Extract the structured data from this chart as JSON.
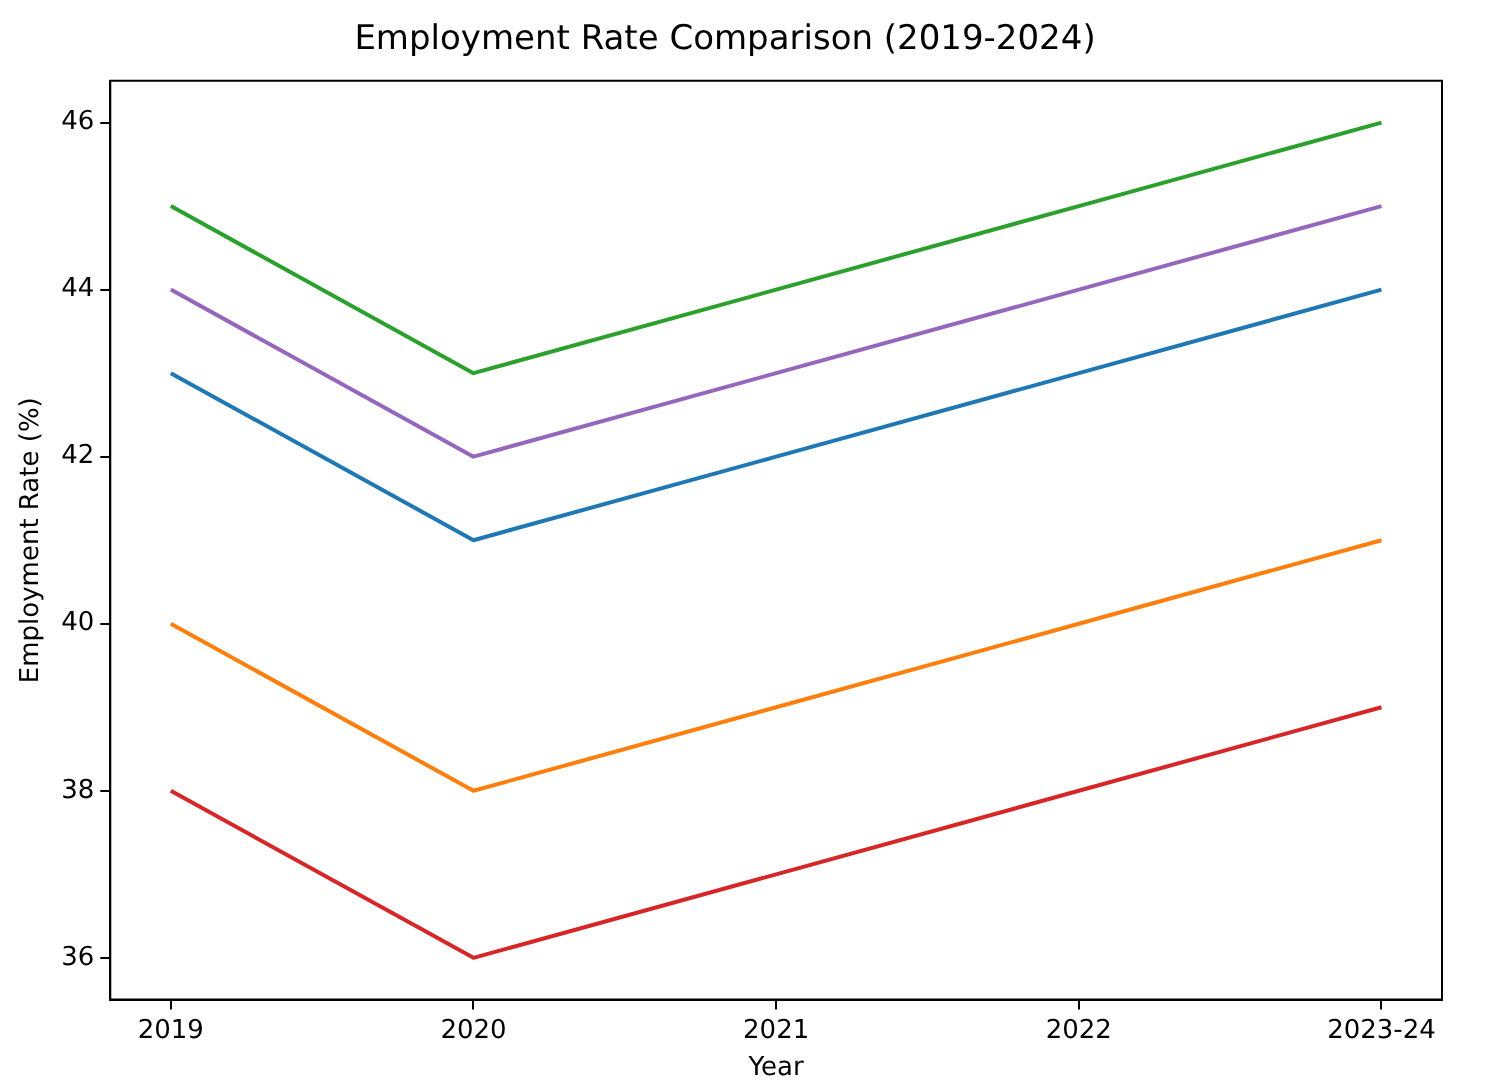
{
  "chart_data": {
    "type": "line",
    "title": "Employment Rate Comparison (2019-2024)",
    "xlabel": "Year",
    "ylabel": "Employment Rate (%)",
    "categories": [
      "2019",
      "2020",
      "2021",
      "2022",
      "2023-24"
    ],
    "series": [
      {
        "color": "#1f77b4",
        "values": [
          43,
          41,
          42,
          43,
          44
        ]
      },
      {
        "color": "#ff7f0e",
        "values": [
          40,
          38,
          39,
          40,
          41
        ]
      },
      {
        "color": "#2ca02c",
        "values": [
          45,
          43,
          44,
          45,
          46
        ]
      },
      {
        "color": "#d62728",
        "values": [
          38,
          36,
          37,
          38,
          39
        ]
      },
      {
        "color": "#9467bd",
        "values": [
          44,
          42,
          43,
          44,
          45
        ]
      }
    ],
    "ylim": [
      35.5,
      46.5
    ],
    "yticks": [
      36,
      38,
      40,
      42,
      44,
      46
    ],
    "grid": false,
    "legend": false,
    "marker": "none",
    "line_style": "solid"
  }
}
